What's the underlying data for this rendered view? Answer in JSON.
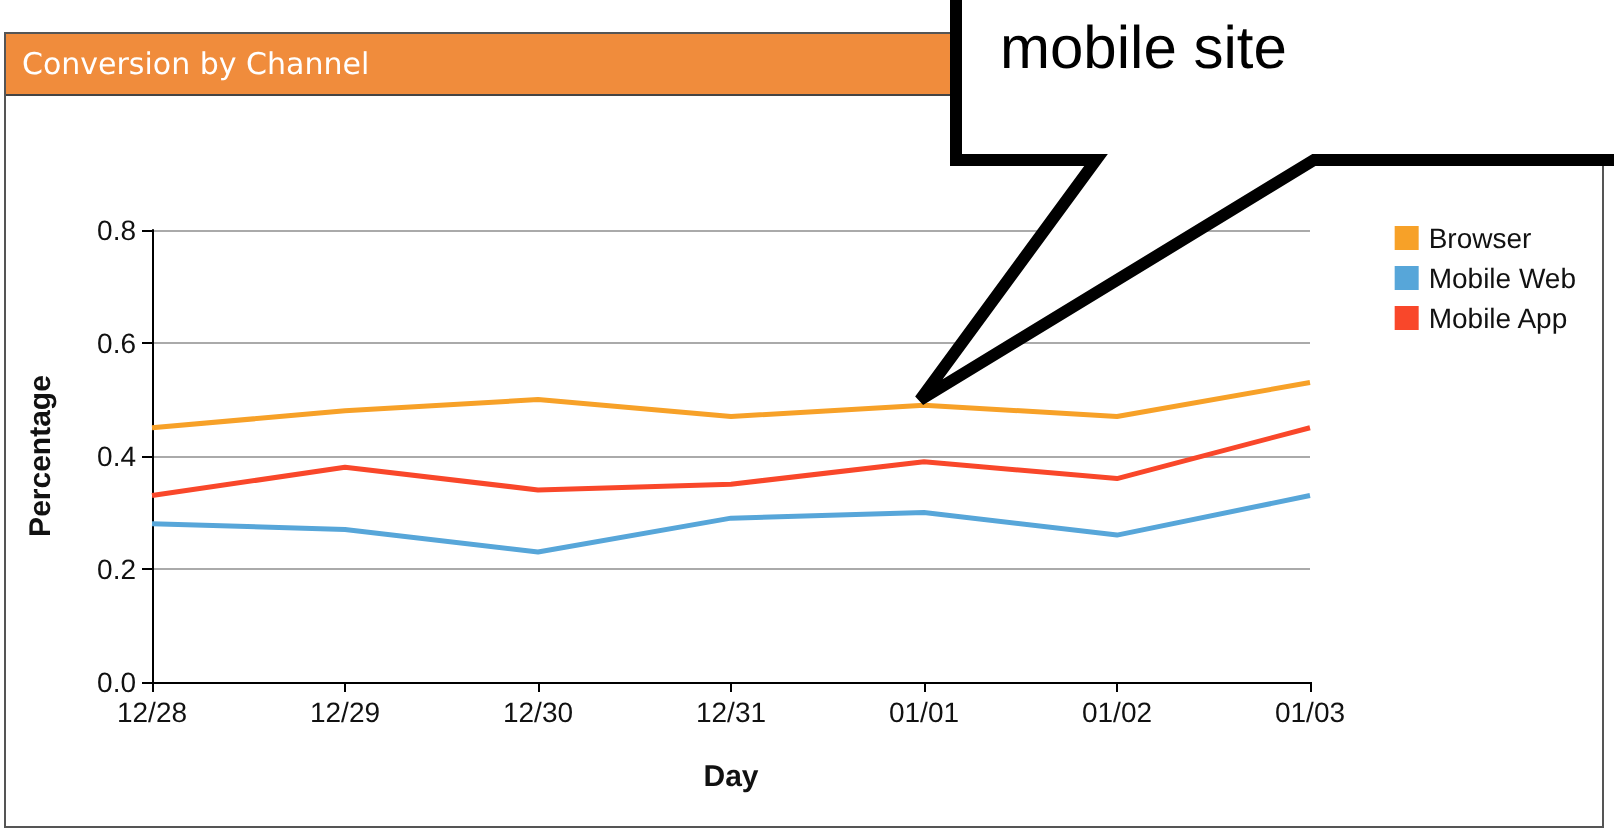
{
  "chart_data": {
    "type": "line",
    "title": "Conversion by Channel",
    "xlabel": "Day",
    "ylabel": "Percentage",
    "categories": [
      "12/28",
      "12/29",
      "12/30",
      "12/31",
      "01/01",
      "01/02",
      "01/03"
    ],
    "series": [
      {
        "name": "Browser",
        "color": "#f7a128",
        "values": [
          0.45,
          0.48,
          0.5,
          0.47,
          0.49,
          0.47,
          0.53
        ]
      },
      {
        "name": "Mobile Web",
        "color": "#57a6d9",
        "values": [
          0.28,
          0.27,
          0.23,
          0.29,
          0.3,
          0.26,
          0.33
        ]
      },
      {
        "name": "Mobile App",
        "color": "#f9472a",
        "values": [
          0.33,
          0.38,
          0.34,
          0.35,
          0.39,
          0.36,
          0.45
        ]
      }
    ],
    "ylim": [
      0,
      0.8
    ],
    "yticks": [
      {
        "value": 0,
        "label": "0.0"
      },
      0.2,
      0.4,
      0.6,
      0.8
    ],
    "grid": "y",
    "legend": "right",
    "marker": "none",
    "line_style": "solid",
    "annotations": [
      "mobile site"
    ]
  }
}
